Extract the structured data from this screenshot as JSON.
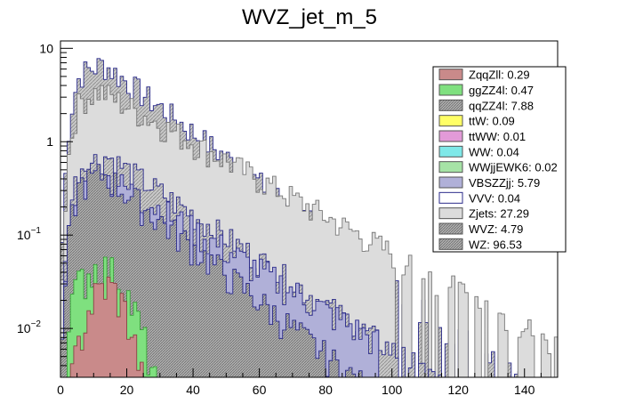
{
  "chart_data": {
    "type": "bar",
    "title": "WVZ_jet_m_5",
    "xlabel": "",
    "ylabel": "",
    "xlim": [
      0,
      150
    ],
    "ylim": [
      0.003,
      12
    ],
    "y_scale": "log",
    "stacked": true,
    "legend_position": "top-right",
    "x_ticks": [
      "0",
      "20",
      "40",
      "60",
      "80",
      "100",
      "120",
      "140"
    ],
    "y_ticks": [
      {
        "value": 10,
        "label": "10"
      },
      {
        "value": 1,
        "label": "1"
      },
      {
        "value": 0.1,
        "label": "10",
        "exp": "−1"
      },
      {
        "value": 0.01,
        "label": "10",
        "exp": "−2"
      }
    ],
    "legend": [
      {
        "label": "ZqqZll: 0.29",
        "color": "#c98a8a"
      },
      {
        "label": "ggZZ4l: 0.47",
        "color": "#7fe07f"
      },
      {
        "label": "qqZZ4l: 7.88",
        "color": "#8a8ac8"
      },
      {
        "label": "ttW: 0.09",
        "color": "#ffff66"
      },
      {
        "label": "ttWW: 0.01",
        "color": "#e29ad8"
      },
      {
        "label": "WW: 0.04",
        "color": "#7fe8e8"
      },
      {
        "label": "WWjjEWK6: 0.02",
        "color": "#a6e3a6"
      },
      {
        "label": "VBSZZjj: 5.79",
        "color": "#b0b0d8"
      },
      {
        "label": "VVV: 0.04",
        "color": "#ffffff"
      },
      {
        "label": "Zjets: 27.29",
        "color": "#dcdcdc"
      },
      {
        "label": "WVZ: 4.79",
        "color": "#bdbdbd"
      },
      {
        "label": "WZ: 96.53",
        "color": "#c2c2c2"
      }
    ],
    "series_profiles": [
      {
        "name": "ZqqZll",
        "peak": 0.028,
        "mean": 14,
        "width": 5
      },
      {
        "name": "ggZZ4l",
        "peak": 0.045,
        "mean": 12,
        "width": 7
      },
      {
        "name": "qqZZ4l",
        "peak": 0.45,
        "mean": 13,
        "decay": 15
      },
      {
        "name": "VBSZZjj",
        "peak": 0.4,
        "mean": 15,
        "decay": 20
      },
      {
        "name": "WVZ",
        "peak": 0.7,
        "mean": 14,
        "decay": 18
      },
      {
        "name": "Zjets",
        "peak": 3.5,
        "mean": 12,
        "decay": 22
      },
      {
        "name": "WZ",
        "peak": 6.8,
        "mean": 13,
        "decay": 16
      }
    ]
  }
}
